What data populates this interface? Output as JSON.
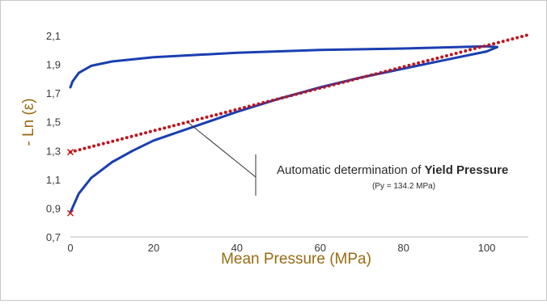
{
  "chart_data": {
    "type": "line",
    "xlabel": "Mean Pressure (MPa)",
    "ylabel": "- Ln (ε)",
    "xlim": [
      0,
      110
    ],
    "ylim": [
      0.7,
      2.1
    ],
    "x_ticks": [
      "0",
      "20",
      "40",
      "60",
      "80",
      "100"
    ],
    "y_ticks": [
      "0,7",
      "0,9",
      "1,1",
      "1,3",
      "1,5",
      "1,7",
      "1,9",
      "2,1"
    ],
    "grid": false,
    "series": [
      {
        "role": "compression",
        "color": "#1a3fb0",
        "points": [
          [
            0,
            0.87
          ],
          [
            2,
            1.0
          ],
          [
            5,
            1.11
          ],
          [
            10,
            1.22
          ],
          [
            15,
            1.3
          ],
          [
            20,
            1.37
          ],
          [
            30,
            1.47
          ],
          [
            40,
            1.57
          ],
          [
            50,
            1.66
          ],
          [
            60,
            1.74
          ],
          [
            70,
            1.81
          ],
          [
            80,
            1.87
          ],
          [
            90,
            1.93
          ],
          [
            100,
            1.99
          ],
          [
            102.5,
            2.02
          ]
        ]
      },
      {
        "role": "decompression",
        "color": "#1a3fb0",
        "points": [
          [
            102.5,
            2.02
          ],
          [
            100,
            2.025
          ],
          [
            80,
            2.01
          ],
          [
            60,
            2.0
          ],
          [
            40,
            1.98
          ],
          [
            20,
            1.95
          ],
          [
            10,
            1.92
          ],
          [
            5,
            1.89
          ],
          [
            2,
            1.84
          ],
          [
            0.5,
            1.78
          ],
          [
            0,
            1.74
          ]
        ]
      },
      {
        "role": "linear-fit",
        "color": "#c0141e",
        "style": "dotted",
        "points": [
          [
            0,
            1.29
          ],
          [
            110,
            2.105
          ]
        ]
      }
    ],
    "markers": [
      {
        "x": 0,
        "y": 1.29,
        "color": "#d01a1a"
      },
      {
        "x": 0,
        "y": 0.865,
        "color": "#d01a1a"
      }
    ],
    "annotation": {
      "text_prefix": "Automatic determination of ",
      "text_bold": "Yield Pressure",
      "subtext": "(Py = 134.2 MPa)",
      "target": [
        28.5,
        1.49
      ]
    }
  }
}
